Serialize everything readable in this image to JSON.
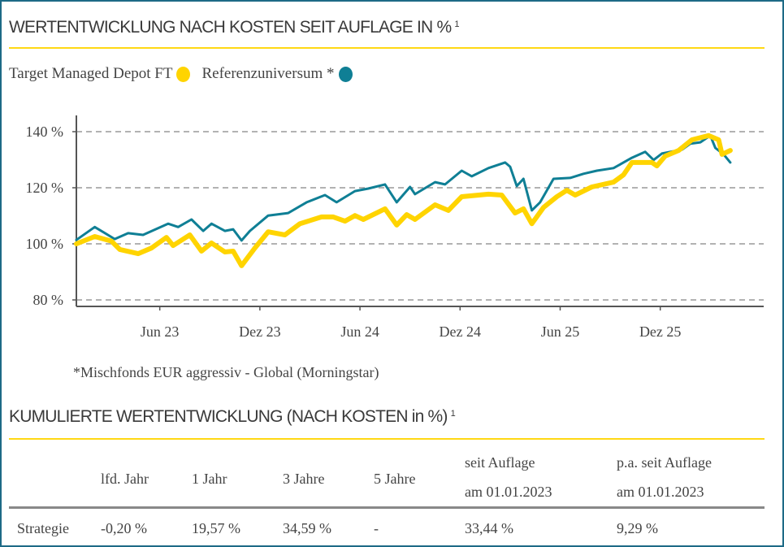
{
  "chart_title": "WERTENTWICKLUNG NACH KOSTEN SEIT AUFLAGE IN %",
  "footnote_marker": "1",
  "legend": [
    {
      "label": "Target Managed Depot FT",
      "color": "#ffd400"
    },
    {
      "label": "Referenzuniversum *",
      "color": "#0f7f95"
    }
  ],
  "footnote": "*Mischfonds EUR aggressiv - Global (Morningstar)",
  "chart_data": {
    "type": "line",
    "title": "WERTENTWICKLUNG NACH KOSTEN SEIT AUFLAGE IN %",
    "xlabel": "",
    "ylabel": "",
    "xlim": [
      0,
      41.2
    ],
    "ylim": [
      78,
      147
    ],
    "y_ticks": [
      80,
      100,
      120,
      140
    ],
    "y_tick_labels": [
      "80 %",
      "100 %",
      "120 %",
      "140 %"
    ],
    "x_ticks": [
      5,
      11,
      17,
      23,
      29,
      35
    ],
    "x_tick_labels": [
      "Jun 23",
      "Dez 23",
      "Jun 24",
      "Dez 24",
      "Jun 25",
      "Dez 25"
    ],
    "grid": "horizontal-dashed",
    "legend_position": "top-left",
    "series": [
      {
        "name": "Target Managed Depot FT",
        "color": "#ffd400",
        "x": [
          0,
          1.1,
          2.1,
          2.6,
          3.7,
          4.5,
          5.4,
          5.8,
          6.8,
          7.5,
          8.1,
          8.9,
          9.4,
          9.9,
          10.7,
          11.5,
          12.5,
          13.4,
          14.7,
          15.4,
          16.1,
          16.7,
          17.2,
          18.5,
          19.2,
          19.8,
          20.3,
          21.5,
          22.3,
          23.1,
          24.7,
          25.5,
          26.3,
          26.8,
          27.3,
          28,
          28.8,
          29.4,
          29.9,
          30.9,
          32.2,
          32.8,
          33.3,
          34.5,
          34.8,
          35.3,
          36.1,
          36.9,
          37.9,
          38.5,
          38.7,
          39.2
        ],
        "y": [
          100,
          102.6,
          101,
          98,
          96.5,
          98.5,
          102.3,
          99.4,
          103.2,
          97.4,
          100.3,
          97.1,
          97.4,
          92.2,
          98.5,
          104.3,
          103.2,
          107.2,
          109.6,
          109.6,
          108.1,
          110.1,
          108.7,
          112.5,
          106.7,
          110.4,
          108.7,
          113.9,
          111.9,
          116.8,
          117.7,
          117.4,
          111,
          112.5,
          107.2,
          113,
          116.8,
          119.1,
          117.4,
          120.3,
          122,
          124.6,
          129,
          129,
          127.8,
          131.3,
          133.3,
          137.1,
          138.6,
          137.1,
          131.9,
          133.3
        ]
      },
      {
        "name": "Referenzuniversum *",
        "color": "#0f7f95",
        "x": [
          0,
          1.1,
          2.3,
          3.1,
          4,
          5.5,
          6.1,
          6.9,
          7.6,
          8.1,
          8.9,
          9.4,
          9.9,
          10.4,
          11.5,
          12.7,
          13.8,
          14.9,
          15.6,
          16.7,
          17.5,
          18.5,
          19.2,
          20,
          20.3,
          21.5,
          22.1,
          23.1,
          23.7,
          24.7,
          25.7,
          26,
          26.4,
          26.8,
          27.3,
          27.8,
          28.6,
          29.6,
          30.4,
          31.2,
          32.2,
          33.3,
          34.1,
          34.6,
          35.1,
          36.3,
          36.8,
          37.4,
          38,
          38.3,
          38.8,
          39.2
        ],
        "y": [
          101.4,
          106,
          101.7,
          103.8,
          103.2,
          107.2,
          106,
          108.7,
          104.6,
          107.2,
          104.6,
          105.2,
          101.2,
          104.6,
          110.1,
          111,
          114.8,
          117.4,
          114.8,
          118.8,
          119.7,
          121.2,
          114.8,
          120.3,
          117.7,
          122,
          121.2,
          126.1,
          124.1,
          127,
          129,
          127.5,
          120.6,
          123.2,
          111.9,
          114.8,
          123.2,
          123.5,
          125,
          126.1,
          127,
          130.7,
          132.8,
          129.9,
          132.2,
          133.6,
          135.7,
          136.2,
          138.6,
          134.2,
          131.9,
          129
        ]
      }
    ]
  },
  "table": {
    "title": "KUMULIERTE WERTENTWICKLUNG (NACH KOSTEN in %)",
    "footnote_marker": "1",
    "headers": [
      "lfd. Jahr",
      "1 Jahr",
      "3 Jahre",
      "5 Jahre"
    ],
    "header_seit": [
      "seit Auflage",
      "am 01.01.2023"
    ],
    "header_pa": [
      "p.a. seit Auflage",
      "am 01.01.2023"
    ],
    "row": {
      "label": "Strategie",
      "values": [
        "-0,20 %",
        "19,57 %",
        "34,59 %",
        "-",
        "33,44 %",
        "9,29 %"
      ]
    }
  }
}
